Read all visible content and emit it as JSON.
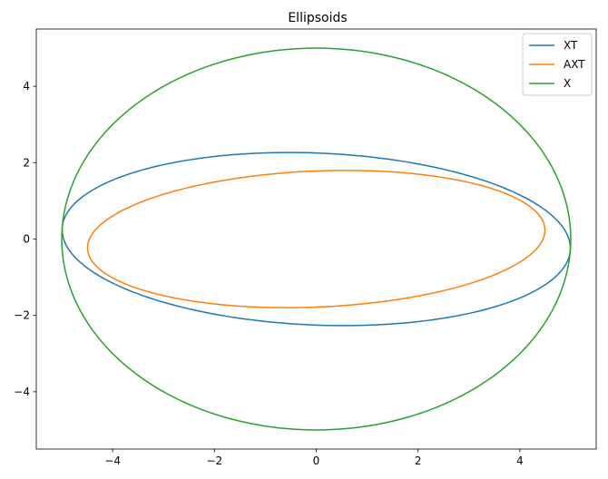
{
  "chart_data": {
    "type": "line",
    "title": "Ellipsoids",
    "xlabel": "",
    "ylabel": "",
    "xlim": [
      -5.5,
      5.5
    ],
    "ylim": [
      -5.5,
      5.5
    ],
    "x_ticks": [
      -4,
      -2,
      0,
      2,
      4
    ],
    "y_ticks": [
      -4,
      -2,
      0,
      2,
      4
    ],
    "grid": false,
    "legend_placement": "top-right",
    "series": [
      {
        "name": "XT",
        "color": "#1f77b4",
        "kind": "ellipse",
        "center": [
          0,
          0
        ],
        "semi_major": 5.0,
        "semi_minor": 2.25,
        "angle_deg": -3.5
      },
      {
        "name": "AXT",
        "color": "#ff7f0e",
        "kind": "ellipse",
        "center": [
          0,
          0
        ],
        "semi_major": 4.5,
        "semi_minor": 1.78,
        "angle_deg": 3.5
      },
      {
        "name": "X",
        "color": "#2ca02c",
        "kind": "ellipse",
        "center": [
          0,
          0
        ],
        "semi_major": 5.0,
        "semi_minor": 5.0,
        "angle_deg": 0
      }
    ]
  }
}
